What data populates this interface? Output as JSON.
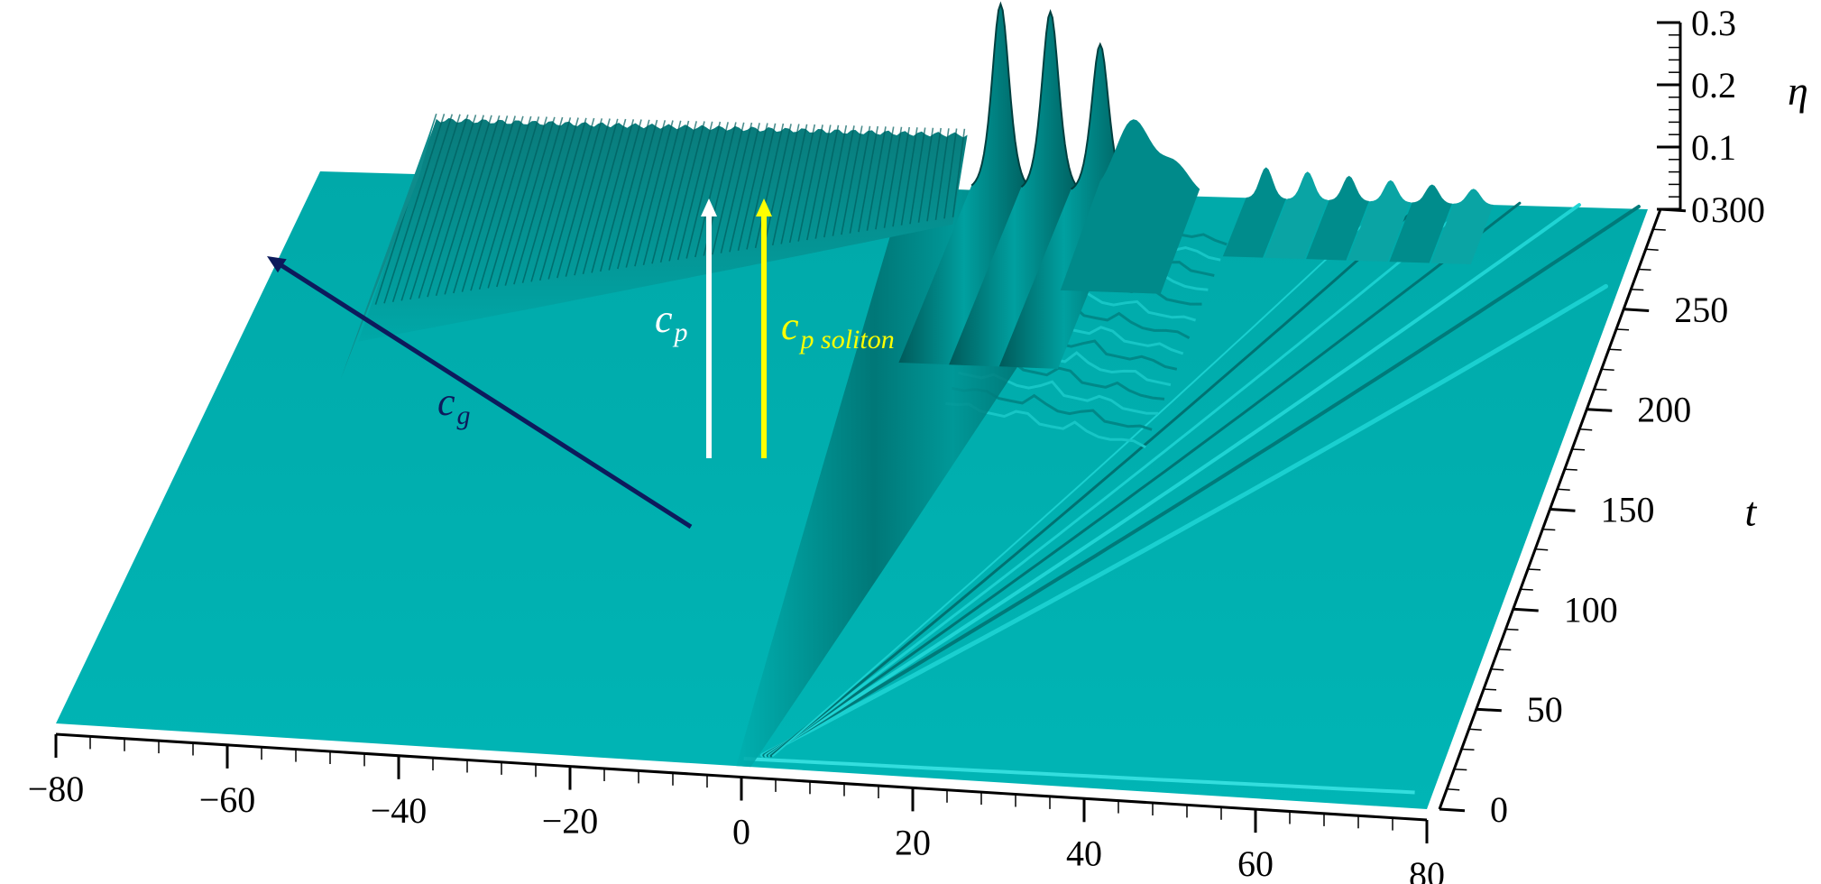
{
  "colors": {
    "surface": "#00b2b2",
    "surface_dark": "#00807f",
    "surface_light": "#22d6d6",
    "axis": "#000000",
    "cg_arrow": "#0d1a5c",
    "cp_arrow": "#ffffff",
    "cp_soliton_arrow": "#ffff00"
  },
  "chart_data": {
    "type": "surface",
    "description_source": "3D surface of wave elevation eta over x and t",
    "x_axis": {
      "label": "",
      "range": [
        -80,
        80
      ],
      "ticks": [
        -80,
        -60,
        -40,
        -20,
        0,
        20,
        40,
        60,
        80
      ],
      "tick_labels": [
        "−80",
        "−60",
        "−40",
        "−20",
        "0",
        "20",
        "40",
        "60",
        "80"
      ]
    },
    "t_axis": {
      "label": "t",
      "range": [
        0,
        300
      ],
      "ticks": [
        0,
        50,
        100,
        150,
        200,
        250,
        300
      ],
      "tick_labels": [
        "0",
        "50",
        "100",
        "150",
        "200",
        "250",
        "300"
      ]
    },
    "eta_axis": {
      "label": "η",
      "range": [
        0,
        0.3
      ],
      "ticks": [
        0,
        0.1,
        0.2,
        0.3
      ],
      "tick_labels": [
        "0",
        "0.1",
        "0.2",
        "0.3"
      ]
    },
    "soliton_peaks_at_t300": [
      {
        "x": 2,
        "eta": 0.3
      },
      {
        "x": 8,
        "eta": 0.29
      },
      {
        "x": 14,
        "eta": 0.24
      }
    ],
    "annotations": [
      {
        "id": "cg",
        "text": "c",
        "sub": "g",
        "color": "#0d1a5c"
      },
      {
        "id": "cp",
        "text": "c",
        "sub": "p",
        "color": "#ffffff"
      },
      {
        "id": "cp_soliton",
        "text": "c",
        "sub": "p soliton",
        "color": "#ffff00"
      }
    ]
  }
}
